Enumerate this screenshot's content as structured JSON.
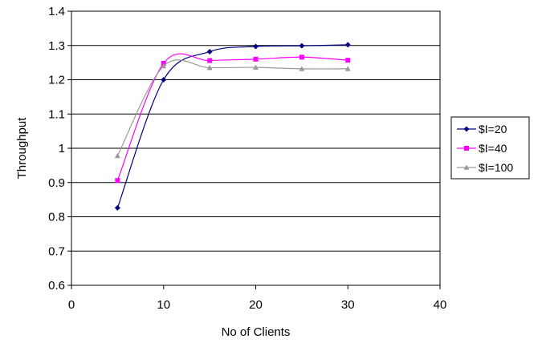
{
  "chart_data": {
    "type": "line",
    "title": "",
    "xlabel": "No of Clients",
    "ylabel": "Throughput",
    "xlim": [
      0,
      40
    ],
    "ylim": [
      0.6,
      1.4
    ],
    "x_ticks": [
      "0",
      "10",
      "20",
      "30",
      "40"
    ],
    "y_ticks": [
      "0.6",
      "0.7",
      "0.8",
      "0.9",
      "1",
      "1.1",
      "1.2",
      "1.3",
      "1.4"
    ],
    "grid": "horizontal",
    "legend_position": "right",
    "smoothed": true,
    "series": [
      {
        "name": "$I=20",
        "color": "#000080",
        "marker": "diamond",
        "x": [
          5,
          10,
          15,
          20,
          25,
          30
        ],
        "y": [
          0.826,
          1.2,
          1.282,
          1.297,
          1.299,
          1.302
        ]
      },
      {
        "name": "$I=40",
        "color": "#ff00ff",
        "marker": "square",
        "x": [
          5,
          10,
          15,
          20,
          25,
          30
        ],
        "y": [
          0.906,
          1.248,
          1.256,
          1.26,
          1.266,
          1.257
        ]
      },
      {
        "name": "$I=100",
        "color": "#999999",
        "marker": "triangle",
        "x": [
          5,
          10,
          15,
          20,
          25,
          30
        ],
        "y": [
          0.978,
          1.24,
          1.235,
          1.236,
          1.232,
          1.232
        ]
      }
    ]
  }
}
